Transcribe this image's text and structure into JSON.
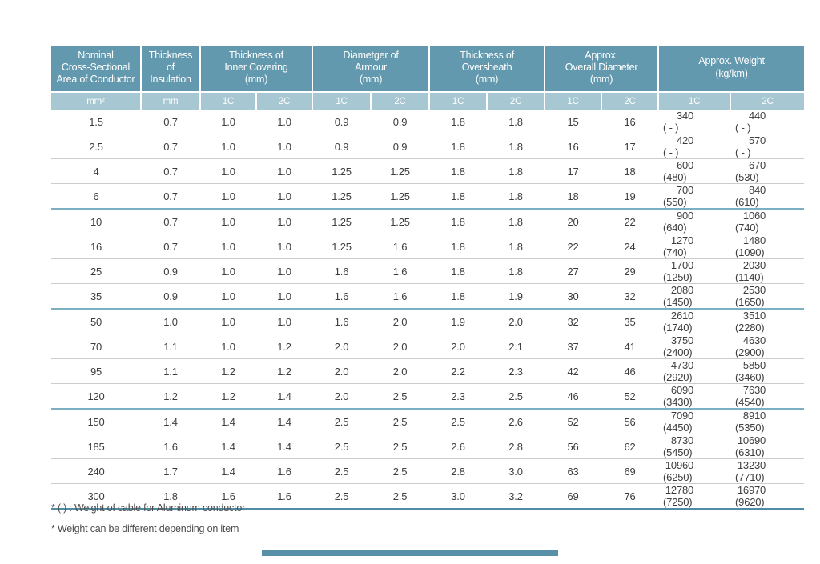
{
  "table": {
    "header": {
      "groups": [
        {
          "label": "Nominal\nCross-Sectional\nArea of Conductor",
          "subs": [
            "mm²"
          ]
        },
        {
          "label": "Thickness\nof\nInsulation",
          "subs": [
            "mm"
          ]
        },
        {
          "label": "Thickness of\nInner Covering\n(mm)",
          "subs": [
            "1C",
            "2C"
          ]
        },
        {
          "label": "Diametger of\nArmour\n(mm)",
          "subs": [
            "1C",
            "2C"
          ]
        },
        {
          "label": "Thickness of\nOversheath\n(mm)",
          "subs": [
            "1C",
            "2C"
          ]
        },
        {
          "label": "Approx.\nOverall Diameter\n(mm)",
          "subs": [
            "1C",
            "2C"
          ]
        },
        {
          "label": "Approx. Weight\n(kg/km)",
          "subs": [
            "1C",
            "2C"
          ]
        }
      ]
    },
    "rows": [
      {
        "values": [
          "1.5",
          "0.7",
          "1.0",
          "1.0",
          "0.9",
          "0.9",
          "1.8",
          "1.8",
          "15",
          "16"
        ],
        "weights": [
          {
            "num": "340",
            "paren": "( - )"
          },
          {
            "num": "440",
            "paren": "( - )"
          }
        ],
        "groupEnd": false
      },
      {
        "values": [
          "2.5",
          "0.7",
          "1.0",
          "1.0",
          "0.9",
          "0.9",
          "1.8",
          "1.8",
          "16",
          "17"
        ],
        "weights": [
          {
            "num": "420",
            "paren": "( - )"
          },
          {
            "num": "570",
            "paren": "( - )"
          }
        ],
        "groupEnd": false
      },
      {
        "values": [
          "4",
          "0.7",
          "1.0",
          "1.0",
          "1.25",
          "1.25",
          "1.8",
          "1.8",
          "17",
          "18"
        ],
        "weights": [
          {
            "num": "600",
            "paren": "(480)"
          },
          {
            "num": "670",
            "paren": "(530)"
          }
        ],
        "groupEnd": false
      },
      {
        "values": [
          "6",
          "0.7",
          "1.0",
          "1.0",
          "1.25",
          "1.25",
          "1.8",
          "1.8",
          "18",
          "19"
        ],
        "weights": [
          {
            "num": "700",
            "paren": "(550)"
          },
          {
            "num": "840",
            "paren": "(610)"
          }
        ],
        "groupEnd": true
      },
      {
        "values": [
          "10",
          "0.7",
          "1.0",
          "1.0",
          "1.25",
          "1.25",
          "1.8",
          "1.8",
          "20",
          "22"
        ],
        "weights": [
          {
            "num": "900",
            "paren": "(640)"
          },
          {
            "num": "1060",
            "paren": "(740)"
          }
        ],
        "groupEnd": false
      },
      {
        "values": [
          "16",
          "0.7",
          "1.0",
          "1.0",
          "1.25",
          "1.6",
          "1.8",
          "1.8",
          "22",
          "24"
        ],
        "weights": [
          {
            "num": "1270",
            "paren": "(740)"
          },
          {
            "num": "1480",
            "paren": "(1090)"
          }
        ],
        "groupEnd": false
      },
      {
        "values": [
          "25",
          "0.9",
          "1.0",
          "1.0",
          "1.6",
          "1.6",
          "1.8",
          "1.8",
          "27",
          "29"
        ],
        "weights": [
          {
            "num": "1700",
            "paren": "(1250)"
          },
          {
            "num": "2030",
            "paren": "(1140)"
          }
        ],
        "groupEnd": false
      },
      {
        "values": [
          "35",
          "0.9",
          "1.0",
          "1.0",
          "1.6",
          "1.6",
          "1.8",
          "1.9",
          "30",
          "32"
        ],
        "weights": [
          {
            "num": "2080",
            "paren": "(1450)"
          },
          {
            "num": "2530",
            "paren": "(1650)"
          }
        ],
        "groupEnd": true
      },
      {
        "values": [
          "50",
          "1.0",
          "1.0",
          "1.0",
          "1.6",
          "2.0",
          "1.9",
          "2.0",
          "32",
          "35"
        ],
        "weights": [
          {
            "num": "2610",
            "paren": "(1740)"
          },
          {
            "num": "3510",
            "paren": "(2280)"
          }
        ],
        "groupEnd": false
      },
      {
        "values": [
          "70",
          "1.1",
          "1.0",
          "1.2",
          "2.0",
          "2.0",
          "2.0",
          "2.1",
          "37",
          "41"
        ],
        "weights": [
          {
            "num": "3750",
            "paren": "(2400)"
          },
          {
            "num": "4630",
            "paren": "(2900)"
          }
        ],
        "groupEnd": false
      },
      {
        "values": [
          "95",
          "1.1",
          "1.2",
          "1.2",
          "2.0",
          "2.0",
          "2.2",
          "2.3",
          "42",
          "46"
        ],
        "weights": [
          {
            "num": "4730",
            "paren": "(2920)"
          },
          {
            "num": "5850",
            "paren": "(3460)"
          }
        ],
        "groupEnd": false
      },
      {
        "values": [
          "120",
          "1.2",
          "1.2",
          "1.4",
          "2.0",
          "2.5",
          "2.3",
          "2.5",
          "46",
          "52"
        ],
        "weights": [
          {
            "num": "6090",
            "paren": "(3430)"
          },
          {
            "num": "7630",
            "paren": "(4540)"
          }
        ],
        "groupEnd": true
      },
      {
        "values": [
          "150",
          "1.4",
          "1.4",
          "1.4",
          "2.5",
          "2.5",
          "2.5",
          "2.6",
          "52",
          "56"
        ],
        "weights": [
          {
            "num": "7090",
            "paren": "(4450)"
          },
          {
            "num": "8910",
            "paren": "(5350)"
          }
        ],
        "groupEnd": false
      },
      {
        "values": [
          "185",
          "1.6",
          "1.4",
          "1.4",
          "2.5",
          "2.5",
          "2.6",
          "2.8",
          "56",
          "62"
        ],
        "weights": [
          {
            "num": "8730",
            "paren": "(5450)"
          },
          {
            "num": "10690",
            "paren": "(6310)"
          }
        ],
        "groupEnd": false
      },
      {
        "values": [
          "240",
          "1.7",
          "1.4",
          "1.6",
          "2.5",
          "2.5",
          "2.8",
          "3.0",
          "63",
          "69"
        ],
        "weights": [
          {
            "num": "10960",
            "paren": "(6250)"
          },
          {
            "num": "13230",
            "paren": "(7710)"
          }
        ],
        "groupEnd": false
      },
      {
        "values": [
          "300",
          "1.8",
          "1.6",
          "1.6",
          "2.5",
          "2.5",
          "3.0",
          "3.2",
          "69",
          "76"
        ],
        "weights": [
          {
            "num": "12780",
            "paren": "(7250)"
          },
          {
            "num": "16970",
            "paren": "(9620)"
          }
        ],
        "groupEnd": false
      }
    ]
  },
  "footnotes": [
    "* ( ) : Weight of cable for Aluminum conductor",
    "* Weight can be different depending on item"
  ],
  "colors": {
    "header_background": "#6399ae",
    "subheader_background": "#a7c7d2",
    "header_text": "#ffffff",
    "body_text": "#3d3d3d",
    "row_separator": "#cccccc",
    "group_separator": "#7cafc2",
    "bottom_border": "#4f8da4",
    "footer_bar": "#5891a7"
  }
}
